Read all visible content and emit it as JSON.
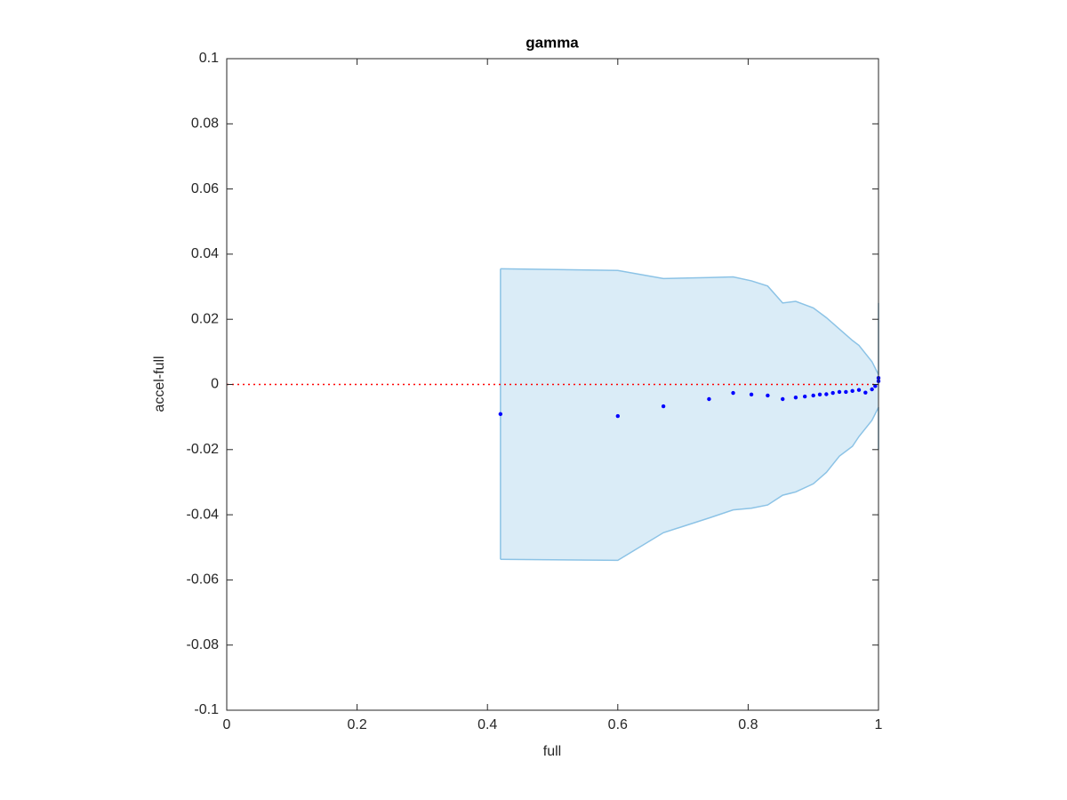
{
  "chart_data": {
    "type": "scatter",
    "title": "gamma",
    "xlabel": "full",
    "ylabel": "accel-full",
    "xlim": [
      0,
      1
    ],
    "ylim": [
      -0.1,
      0.1
    ],
    "xticks": [
      0,
      0.2,
      0.4,
      0.6,
      0.8,
      1
    ],
    "yticks": [
      -0.1,
      -0.08,
      -0.06,
      -0.04,
      -0.02,
      0,
      0.02,
      0.04,
      0.06,
      0.08,
      0.1
    ],
    "x": [
      0.42,
      0.6,
      0.67,
      0.74,
      0.777,
      0.805,
      0.83,
      0.853,
      0.873,
      0.887,
      0.9,
      0.91,
      0.92,
      0.93,
      0.94,
      0.95,
      0.96,
      0.97,
      0.98,
      0.99,
      0.995,
      1.0,
      1.0
    ],
    "values": [
      -0.0091,
      -0.0097,
      -0.0067,
      -0.0045,
      -0.0026,
      -0.0031,
      -0.0034,
      -0.0045,
      -0.004,
      -0.0037,
      -0.0034,
      -0.0031,
      -0.003,
      -0.0026,
      -0.0023,
      -0.0023,
      -0.002,
      -0.0017,
      -0.0025,
      -0.0015,
      -0.0005,
      0.001,
      0.002
    ],
    "color": "#0000ff",
    "band": {
      "x": [
        0.42,
        0.6,
        0.67,
        0.74,
        0.777,
        0.805,
        0.83,
        0.853,
        0.873,
        0.9,
        0.92,
        0.94,
        0.96,
        0.97,
        0.99,
        1.0,
        1.0
      ],
      "upper": [
        0.0355,
        0.035,
        0.0325,
        0.0328,
        0.033,
        0.0318,
        0.0302,
        0.025,
        0.0255,
        0.0235,
        0.0205,
        0.017,
        0.0135,
        0.012,
        0.007,
        0.003,
        0.025
      ],
      "lower": [
        -0.0537,
        -0.054,
        -0.0455,
        -0.041,
        -0.0385,
        -0.038,
        -0.037,
        -0.034,
        -0.033,
        -0.0305,
        -0.027,
        -0.022,
        -0.019,
        -0.016,
        -0.011,
        -0.007,
        -0.02
      ],
      "color": "#8cc3e6"
    },
    "reference_line": {
      "value": 0,
      "color": "#ff0000"
    }
  }
}
